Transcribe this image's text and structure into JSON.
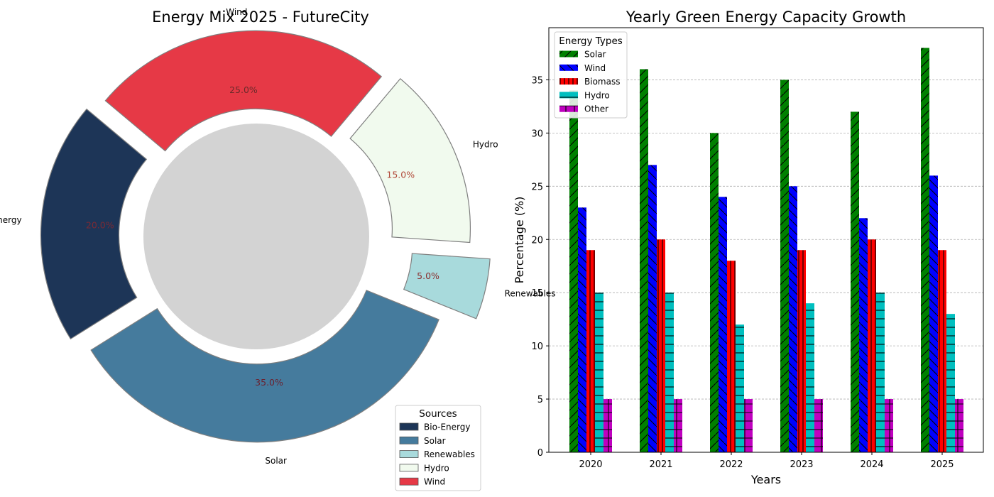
{
  "chart_data": [
    {
      "type": "pie",
      "style": "donut",
      "title": "Energy Mix 2025 - FutureCity",
      "slices": [
        {
          "label": "Bio-Energy",
          "value": 20.0,
          "pct_label": "20.0%",
          "color": "#1d3557"
        },
        {
          "label": "Solar",
          "value": 35.0,
          "pct_label": "35.0%",
          "color": "#457b9d"
        },
        {
          "label": "Renewables",
          "value": 5.0,
          "pct_label": "5.0%",
          "color": "#a8dadc"
        },
        {
          "label": "Hydro",
          "value": 15.0,
          "pct_label": "15.0%",
          "color": "#f1faee"
        },
        {
          "label": "Wind",
          "value": 25.0,
          "pct_label": "25.0%",
          "color": "#e63946"
        }
      ],
      "center_color": "#d3d3d3",
      "legend": {
        "title": "Sources",
        "placement": "bottom-right"
      }
    },
    {
      "type": "bar",
      "title": "Yearly Green Energy Capacity Growth",
      "xlabel": "Years",
      "ylabel": "Percentage (%)",
      "categories": [
        "2020",
        "2021",
        "2022",
        "2023",
        "2024",
        "2025"
      ],
      "series": [
        {
          "name": "Solar",
          "values": [
            34,
            36,
            30,
            35,
            32,
            38
          ],
          "color": "#008000",
          "hatch": "diagonal"
        },
        {
          "name": "Wind",
          "values": [
            23,
            27,
            24,
            25,
            22,
            26
          ],
          "color": "#0000ff",
          "hatch": "backslash"
        },
        {
          "name": "Biomass",
          "values": [
            19,
            20,
            18,
            19,
            20,
            19
          ],
          "color": "#ff0000",
          "hatch": "vertical"
        },
        {
          "name": "Hydro",
          "values": [
            15,
            15,
            12,
            14,
            15,
            13
          ],
          "color": "#00bfbf",
          "hatch": "horizontal"
        },
        {
          "name": "Other",
          "values": [
            5,
            5,
            5,
            5,
            5,
            5
          ],
          "color": "#bf00bf",
          "hatch": "grid"
        }
      ],
      "yticks": [
        0,
        5,
        10,
        15,
        20,
        25,
        30,
        35
      ],
      "ylim": [
        0,
        39.9
      ],
      "grid": "y-dashed",
      "legend": {
        "title": "Energy Types",
        "placement": "top-left"
      }
    }
  ]
}
